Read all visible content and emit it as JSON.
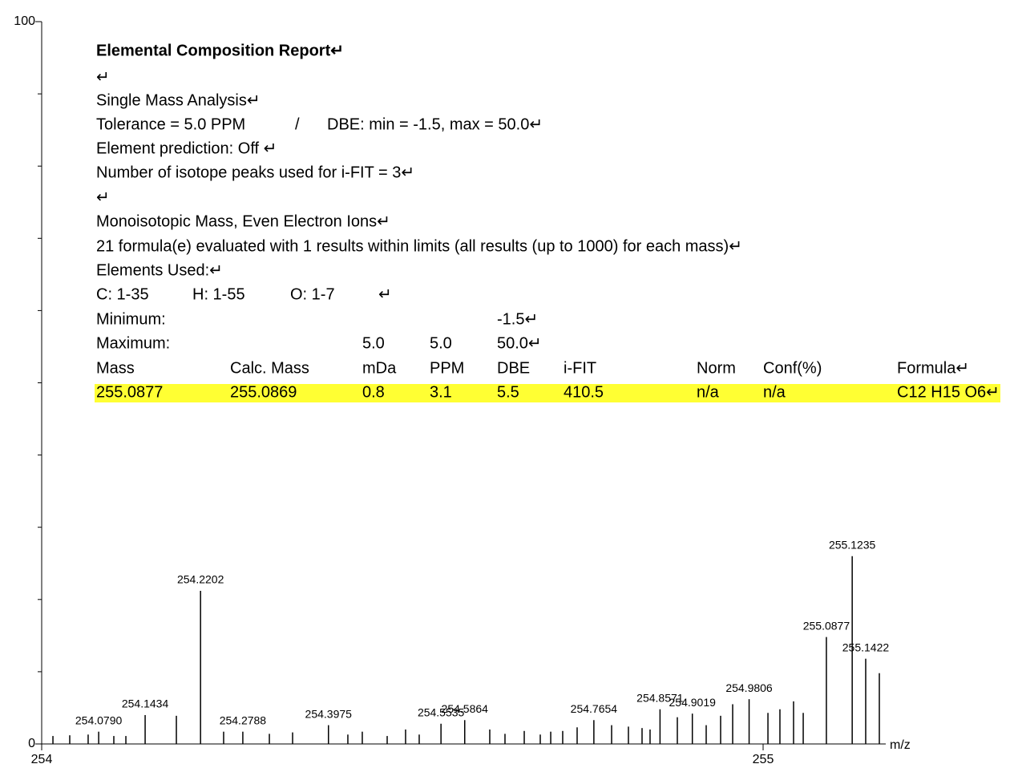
{
  "chart_data": {
    "type": "stick",
    "x_label": "m/z",
    "xlim": [
      254,
      255.17
    ],
    "xticks": [
      254,
      255
    ],
    "ylim": [
      0,
      100
    ],
    "yticks": [
      0,
      100
    ],
    "y_minor_ticks": [
      10,
      20,
      30,
      40,
      50,
      60,
      70,
      80,
      90
    ],
    "color": "#000000",
    "x": [
      254.0156,
      254.0389,
      254.0644,
      254.079,
      254.1,
      254.1167,
      254.1434,
      254.1867,
      254.2202,
      254.2522,
      254.2788,
      254.3156,
      254.3478,
      254.3975,
      254.4244,
      254.4444,
      254.4789,
      254.5044,
      254.5233,
      254.5535,
      254.5864,
      254.6211,
      254.6422,
      254.6689,
      254.6911,
      254.7056,
      254.7222,
      254.7422,
      254.7654,
      254.79,
      254.8133,
      254.8322,
      254.8433,
      254.8571,
      254.8811,
      254.9019,
      254.9211,
      254.9411,
      254.9578,
      254.9806,
      255.0067,
      255.0233,
      255.0422,
      255.0556,
      255.0877,
      255.1235,
      255.1422,
      255.1611
    ],
    "values": [
      1.1,
      1.2,
      1.3,
      1.7,
      1.1,
      1.1,
      4.0,
      3.9,
      21.2,
      1.7,
      1.7,
      1.4,
      1.6,
      2.6,
      1.3,
      1.7,
      1.1,
      2.0,
      1.3,
      2.8,
      3.3,
      2.0,
      1.4,
      1.8,
      1.3,
      1.7,
      1.8,
      2.3,
      3.3,
      2.6,
      2.4,
      2.2,
      2.0,
      4.8,
      3.7,
      4.2,
      2.6,
      3.9,
      5.5,
      6.2,
      4.3,
      4.8,
      5.9,
      4.3,
      14.8,
      26.0,
      11.8,
      9.8
    ],
    "peak_labels": [
      null,
      null,
      null,
      "254.0790",
      null,
      null,
      "254.1434",
      null,
      "254.2202",
      null,
      "254.2788",
      null,
      null,
      "254.3975",
      null,
      null,
      null,
      null,
      null,
      "254.5535",
      "254.5864",
      null,
      null,
      null,
      null,
      null,
      null,
      null,
      "254.7654",
      null,
      null,
      null,
      null,
      "254.8571",
      null,
      "254.9019",
      null,
      null,
      null,
      "254.9806",
      null,
      null,
      null,
      null,
      "255.0877",
      "255.1235",
      "255.1422",
      null
    ]
  },
  "report": {
    "title": "Elemental Composition Report↵",
    "lines": [
      [
        "↵"
      ],
      [
        "Single Mass Analysis↵"
      ],
      [
        "Tolerance = 5.0 PPM",
        "/",
        "DBE: min = -1.5, max = 50.0↵"
      ],
      [
        "Element prediction: Off ↵"
      ],
      [
        "Number of isotope peaks used for i-FIT = 3↵"
      ],
      [
        "↵"
      ],
      [
        "Monoisotopic Mass, Even Electron Ions↵"
      ],
      [
        "21 formula(e) evaluated with 1 results within limits (all results (up to 1000) for each mass)↵"
      ],
      [
        "Elements Used:↵"
      ],
      [
        "C: 1-35",
        "H: 1-55",
        "O: 1-7",
        "↵"
      ]
    ],
    "table": {
      "rows": [
        [
          "Minimum:",
          null,
          null,
          null,
          "-1.5↵"
        ],
        [
          "Maximum:",
          null,
          "5.0",
          "5.0",
          "50.0↵"
        ],
        [
          "Mass",
          "Calc. Mass",
          "mDa",
          "PPM",
          "DBE",
          "i-FIT",
          "Norm",
          "Conf(%)",
          "Formula↵"
        ],
        [
          "255.0877",
          "255.0869",
          "0.8",
          "3.1",
          "5.5",
          "410.5",
          "n/a",
          "n/a",
          "C12 H15 O6↵"
        ]
      ]
    }
  }
}
